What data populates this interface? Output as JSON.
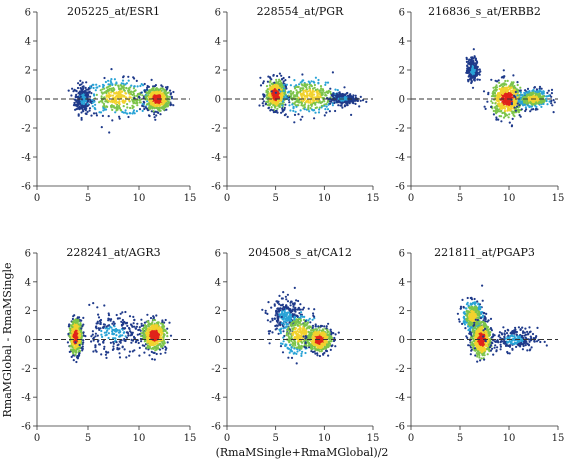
{
  "figure": {
    "xlabel": "(RmaMSingle+RmaMGlobal)/2",
    "ylabel": "RmaMGlobal - RmaMSingle"
  },
  "colors": {
    "density_low": "#1f3a8a",
    "density_midlow": "#29a3d6",
    "density_mid": "#7cc44a",
    "density_midhigh": "#f2d22e",
    "density_high": "#e0241b",
    "reference_line": "#333333"
  },
  "chart_data": [
    {
      "type": "scatter",
      "subtype": "MA density scatter",
      "title": "205225_at/ESR1",
      "xlim": [
        0,
        15
      ],
      "ylim": [
        -6,
        6
      ],
      "xticks": [
        "0",
        "5",
        "10",
        "15"
      ],
      "yticks": [
        "-6",
        "-4",
        "-2",
        "0",
        "2",
        "4",
        "6"
      ],
      "reference_line_y": 0,
      "clusters": [
        {
          "x": 4.5,
          "y": 0.0,
          "x_sd": 0.4,
          "y_sd": 0.5,
          "density": "low"
        },
        {
          "x": 8.0,
          "y": 0.1,
          "x_sd": 1.6,
          "y_sd": 0.6,
          "density": "mid"
        },
        {
          "x": 11.8,
          "y": 0.0,
          "x_sd": 0.6,
          "y_sd": 0.4,
          "density": "high"
        }
      ]
    },
    {
      "type": "scatter",
      "subtype": "MA density scatter",
      "title": "228554_at/PGR",
      "xlim": [
        0,
        15
      ],
      "ylim": [
        -6,
        6
      ],
      "xticks": [
        "0",
        "5",
        "10",
        "15"
      ],
      "yticks": [
        "-6",
        "-4",
        "-2",
        "0",
        "2",
        "4",
        "6"
      ],
      "reference_line_y": 0,
      "clusters": [
        {
          "x": 5.0,
          "y": 0.3,
          "x_sd": 0.5,
          "y_sd": 0.5,
          "density": "high"
        },
        {
          "x": 8.5,
          "y": 0.2,
          "x_sd": 1.5,
          "y_sd": 0.6,
          "density": "mid"
        },
        {
          "x": 12.0,
          "y": 0.0,
          "x_sd": 0.7,
          "y_sd": 0.2,
          "density": "low"
        }
      ]
    },
    {
      "type": "scatter",
      "subtype": "MA density scatter",
      "title": "216836_s_at/ERBB2",
      "xlim": [
        0,
        15
      ],
      "ylim": [
        -6,
        6
      ],
      "xticks": [
        "0",
        "5",
        "10",
        "15"
      ],
      "yticks": [
        "-6",
        "-4",
        "-2",
        "0",
        "2",
        "4",
        "6"
      ],
      "reference_line_y": 0,
      "clusters": [
        {
          "x": 6.3,
          "y": 2.0,
          "x_sd": 0.3,
          "y_sd": 0.4,
          "density": "low"
        },
        {
          "x": 9.8,
          "y": 0.0,
          "x_sd": 0.8,
          "y_sd": 0.6,
          "density": "high"
        },
        {
          "x": 12.5,
          "y": 0.0,
          "x_sd": 0.8,
          "y_sd": 0.3,
          "density": "mid"
        }
      ]
    },
    {
      "type": "scatter",
      "subtype": "MA density scatter",
      "title": "228241_at/AGR3",
      "xlim": [
        0,
        15
      ],
      "ylim": [
        -6,
        6
      ],
      "xticks": [
        "0",
        "5",
        "10",
        "15"
      ],
      "yticks": [
        "-6",
        "-4",
        "-2",
        "0",
        "2",
        "4",
        "6"
      ],
      "reference_line_y": 0,
      "clusters": [
        {
          "x": 3.8,
          "y": 0.2,
          "x_sd": 0.3,
          "y_sd": 0.6,
          "density": "high"
        },
        {
          "x": 7.5,
          "y": 0.4,
          "x_sd": 1.6,
          "y_sd": 0.7,
          "density": "low"
        },
        {
          "x": 11.5,
          "y": 0.3,
          "x_sd": 0.6,
          "y_sd": 0.5,
          "density": "high"
        }
      ]
    },
    {
      "type": "scatter",
      "subtype": "MA density scatter",
      "title": "204508_s_at/CA12",
      "xlim": [
        0,
        15
      ],
      "ylim": [
        -6,
        6
      ],
      "xticks": [
        "0",
        "5",
        "10",
        "15"
      ],
      "yticks": [
        "-6",
        "-4",
        "-2",
        "0",
        "2",
        "4",
        "6"
      ],
      "reference_line_y": 0,
      "clusters": [
        {
          "x": 6.0,
          "y": 1.6,
          "x_sd": 0.8,
          "y_sd": 0.6,
          "density": "low"
        },
        {
          "x": 7.5,
          "y": 0.4,
          "x_sd": 1.0,
          "y_sd": 0.7,
          "density": "mid"
        },
        {
          "x": 9.5,
          "y": 0.0,
          "x_sd": 0.6,
          "y_sd": 0.4,
          "density": "high"
        }
      ]
    },
    {
      "type": "scatter",
      "subtype": "MA density scatter",
      "title": "221811_at/PGAP3",
      "xlim": [
        0,
        15
      ],
      "ylim": [
        -6,
        6
      ],
      "xticks": [
        "0",
        "5",
        "10",
        "15"
      ],
      "yticks": [
        "-6",
        "-4",
        "-2",
        "0",
        "2",
        "4",
        "6"
      ],
      "reference_line_y": 0,
      "clusters": [
        {
          "x": 6.3,
          "y": 1.6,
          "x_sd": 0.5,
          "y_sd": 0.5,
          "density": "mid"
        },
        {
          "x": 7.2,
          "y": 0.0,
          "x_sd": 0.5,
          "y_sd": 0.6,
          "density": "high"
        },
        {
          "x": 10.5,
          "y": 0.0,
          "x_sd": 1.2,
          "y_sd": 0.4,
          "density": "low"
        }
      ]
    }
  ]
}
